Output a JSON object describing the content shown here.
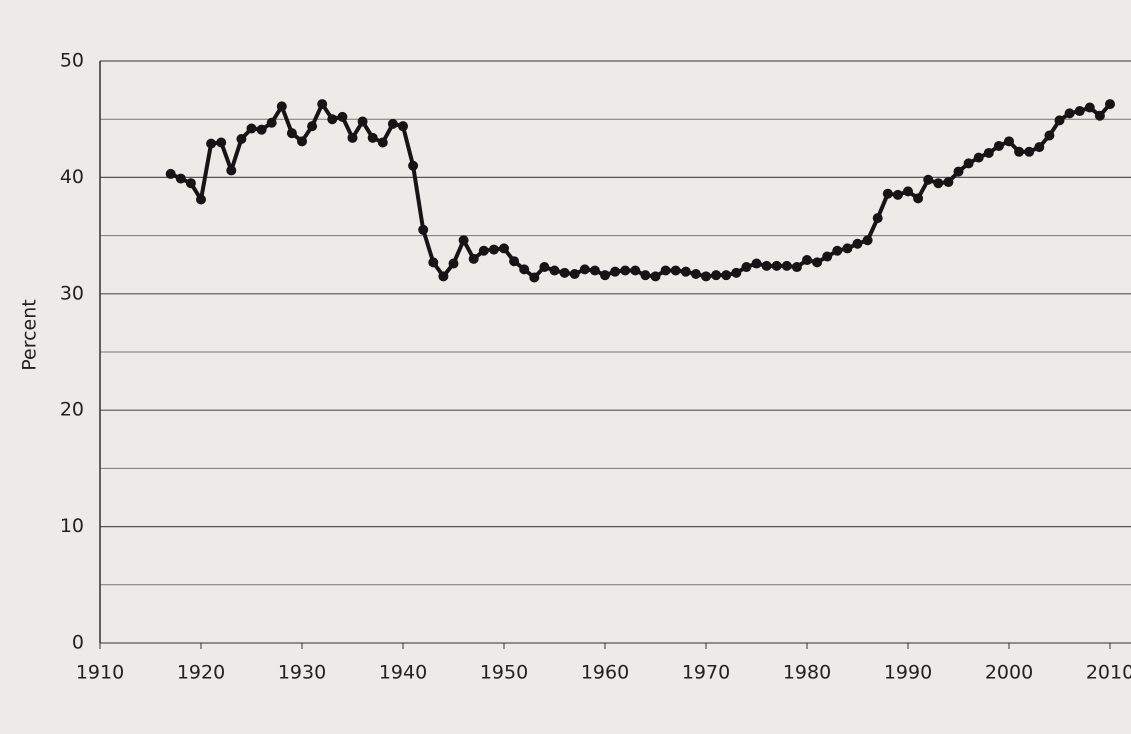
{
  "chart_data": {
    "type": "line",
    "y_label": "Percent",
    "color": "#151515",
    "grid": true,
    "x": [
      1917,
      1918,
      1919,
      1920,
      1921,
      1922,
      1923,
      1924,
      1925,
      1926,
      1927,
      1928,
      1929,
      1930,
      1931,
      1932,
      1933,
      1934,
      1935,
      1936,
      1937,
      1938,
      1939,
      1940,
      1941,
      1942,
      1943,
      1944,
      1945,
      1946,
      1947,
      1948,
      1949,
      1950,
      1951,
      1952,
      1953,
      1954,
      1955,
      1956,
      1957,
      1958,
      1959,
      1960,
      1961,
      1962,
      1963,
      1964,
      1965,
      1966,
      1967,
      1968,
      1969,
      1970,
      1971,
      1972,
      1973,
      1974,
      1975,
      1976,
      1977,
      1978,
      1979,
      1980,
      1981,
      1982,
      1983,
      1984,
      1985,
      1986,
      1987,
      1988,
      1989,
      1990,
      1991,
      1992,
      1993,
      1994,
      1995,
      1996,
      1997,
      1998,
      1999,
      2000,
      2001,
      2002,
      2003,
      2004,
      2005,
      2006,
      2007,
      2008,
      2009,
      2010
    ],
    "values": [
      40.3,
      39.9,
      39.5,
      38.1,
      42.9,
      43.0,
      40.6,
      43.3,
      44.2,
      44.1,
      44.7,
      46.1,
      43.8,
      43.1,
      44.4,
      46.3,
      45.0,
      45.2,
      43.4,
      44.8,
      43.4,
      43.0,
      44.6,
      44.4,
      41.0,
      35.5,
      32.7,
      31.5,
      32.6,
      34.6,
      33.0,
      33.7,
      33.8,
      33.9,
      32.8,
      32.1,
      31.4,
      32.3,
      32.0,
      31.8,
      31.7,
      32.1,
      32.0,
      31.6,
      31.9,
      32.0,
      32.0,
      31.6,
      31.5,
      32.0,
      32.0,
      31.9,
      31.7,
      31.5,
      31.6,
      31.6,
      31.8,
      32.3,
      32.6,
      32.4,
      32.4,
      32.4,
      32.3,
      32.9,
      32.7,
      33.2,
      33.7,
      33.9,
      34.3,
      34.6,
      36.5,
      38.6,
      38.5,
      38.8,
      38.2,
      39.8,
      39.5,
      39.6,
      40.5,
      41.2,
      41.7,
      42.1,
      42.7,
      43.1,
      42.2,
      42.2,
      42.6,
      43.6,
      44.9,
      45.5,
      45.7,
      46.0,
      45.3,
      46.3
    ],
    "xlim": [
      1910,
      2010
    ],
    "xticks": [
      1910,
      1920,
      1930,
      1940,
      1950,
      1960,
      1970,
      1980,
      1990,
      2000,
      2010
    ],
    "ylim": [
      0,
      50
    ],
    "yticks": [
      0,
      10,
      20,
      30,
      40,
      50
    ],
    "y_minor_grid": [
      5,
      15,
      25,
      35,
      45
    ]
  }
}
